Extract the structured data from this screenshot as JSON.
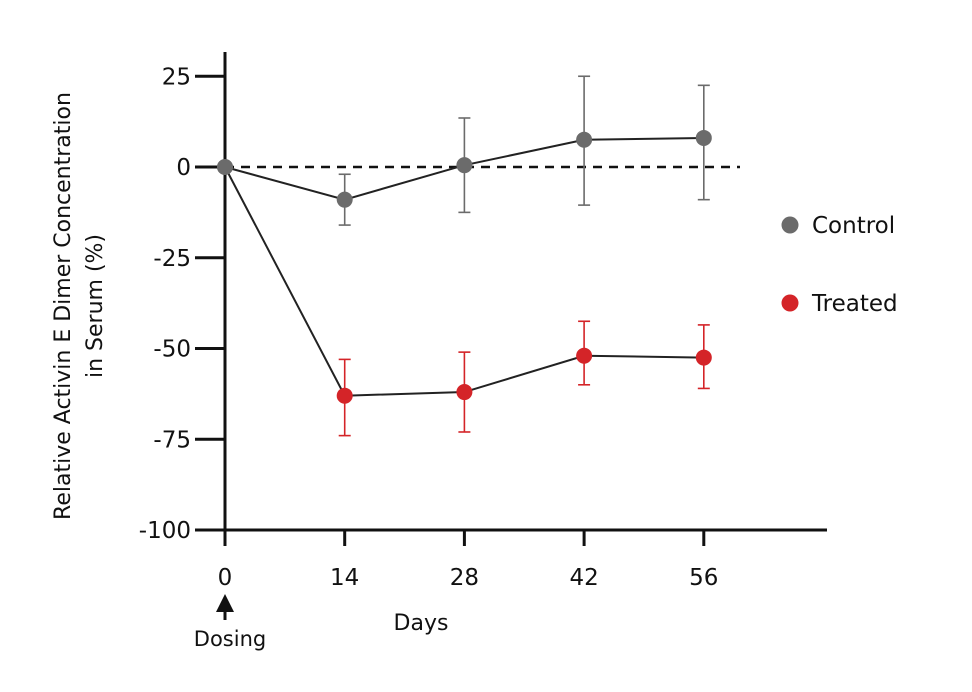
{
  "chart_data": {
    "type": "line",
    "xlabel": "Days",
    "ylabel_lines": [
      "Relative Activin E Dimer Concentration",
      "in Serum (%)"
    ],
    "x": [
      0,
      14,
      28,
      42,
      56
    ],
    "xlim": [
      0,
      70
    ],
    "ylim": [
      -100,
      30
    ],
    "x_ticks": [
      0,
      14,
      28,
      42,
      56
    ],
    "y_ticks": [
      25,
      0,
      -25,
      -50,
      -75,
      -100
    ],
    "reference_line": {
      "y": 0,
      "style": "dashed"
    },
    "grid": false,
    "legend_position": "right",
    "annotation": {
      "label": "Dosing",
      "x": 0,
      "marker": "arrow-up"
    },
    "series": [
      {
        "name": "Control",
        "color": "#6b6b6b",
        "values": [
          0,
          -9,
          0.5,
          7.5,
          8
        ],
        "error_upper": [
          0,
          -2,
          13.5,
          25,
          22.5
        ],
        "error_lower": [
          0,
          -16,
          -12.5,
          -10.5,
          -9
        ]
      },
      {
        "name": "Treated",
        "color": "#d42428",
        "values": [
          0,
          -63,
          -62,
          -52,
          -52.5
        ],
        "error_upper": [
          0,
          -53,
          -51,
          -42.5,
          -43.5
        ],
        "error_lower": [
          0,
          -74,
          -73,
          -60,
          -61
        ]
      }
    ]
  }
}
